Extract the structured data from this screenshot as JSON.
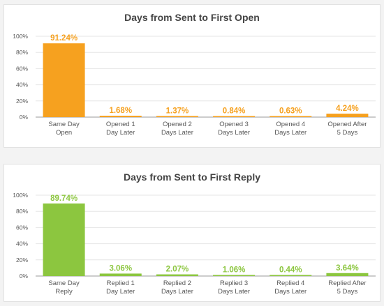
{
  "colors": {
    "open_bar": "#f6a11f",
    "reply_bar": "#8cc63f",
    "background": "#f3f3f3",
    "panel": "#ffffff",
    "grid": "#e6e6e6",
    "axis": "#999999"
  },
  "chart_data": [
    {
      "type": "bar",
      "title": "Days from Sent to First Open",
      "xlabel": "",
      "ylabel": "",
      "ylim": [
        0,
        100
      ],
      "yticks": [
        "0%",
        "20%",
        "40%",
        "60%",
        "80%",
        "100%"
      ],
      "grid": true,
      "categories": [
        [
          "Same Day",
          "Open"
        ],
        [
          "Opened 1",
          "Day Later"
        ],
        [
          "Opened 2",
          "Days Later"
        ],
        [
          "Opened 3",
          "Days Later"
        ],
        [
          "Opened 4",
          "Days Later"
        ],
        [
          "Opened After",
          "5 Days"
        ]
      ],
      "values": [
        91.24,
        1.68,
        1.37,
        0.84,
        0.63,
        4.24
      ],
      "data_labels": [
        "91.24%",
        "1.68%",
        "1.37%",
        "0.84%",
        "0.63%",
        "4.24%"
      ],
      "color": "#f6a11f"
    },
    {
      "type": "bar",
      "title": "Days from Sent to First Reply",
      "xlabel": "",
      "ylabel": "",
      "ylim": [
        0,
        100
      ],
      "yticks": [
        "0%",
        "20%",
        "40%",
        "60%",
        "80%",
        "100%"
      ],
      "grid": true,
      "categories": [
        [
          "Same Day",
          "Reply"
        ],
        [
          "Replied 1",
          "Day Later"
        ],
        [
          "Replied 2",
          "Days Later"
        ],
        [
          "Replied 3",
          "Days Later"
        ],
        [
          "Replied 4",
          "Days Later"
        ],
        [
          "Replied After",
          "5 Days"
        ]
      ],
      "values": [
        89.74,
        3.06,
        2.07,
        1.06,
        0.44,
        3.64
      ],
      "data_labels": [
        "89.74%",
        "3.06%",
        "2.07%",
        "1.06%",
        "0.44%",
        "3.64%"
      ],
      "color": "#8cc63f"
    }
  ]
}
